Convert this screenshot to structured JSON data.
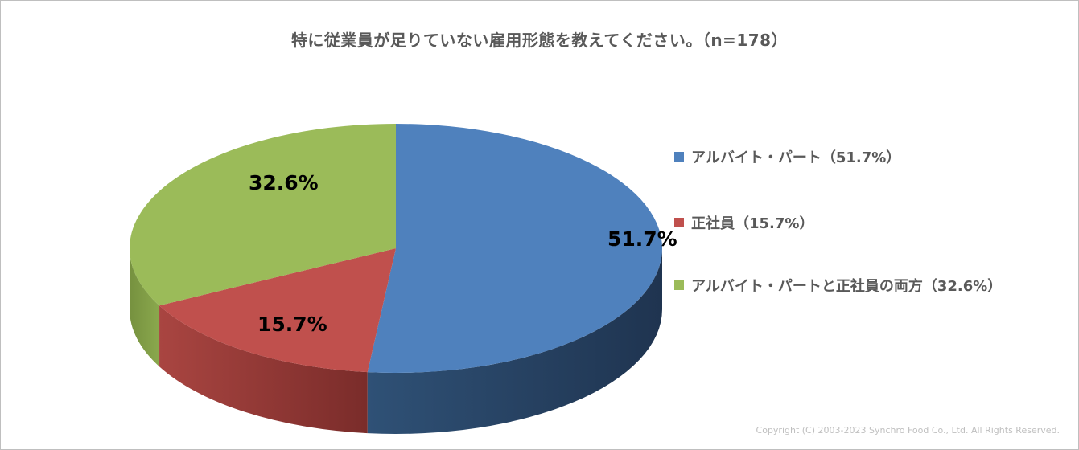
{
  "chart_data": {
    "type": "pie",
    "title": "特に従業員が足りていない雇用形態を教えてください。（n=178）",
    "slices": [
      {
        "name": "アルバイト・パート",
        "value": 51.7,
        "label": "51.7%",
        "legend": "アルバイト・パート（51.7%）",
        "color": "#4f81bd"
      },
      {
        "name": "正社員",
        "value": 15.7,
        "label": "15.7%",
        "legend": "正社員（15.7%）",
        "color": "#c0504d"
      },
      {
        "name": "アルバイト・パートと正社員の両方",
        "value": 32.6,
        "label": "32.6%",
        "legend": "アルバイト・パートと正社員の両方（32.6%）",
        "color": "#9bbb59"
      }
    ],
    "legend_position": "right",
    "style": "3d"
  },
  "footer": {
    "copyright": "Copyright (C) 2003-2023   Synchro Food Co., Ltd. All Rights Reserved."
  }
}
